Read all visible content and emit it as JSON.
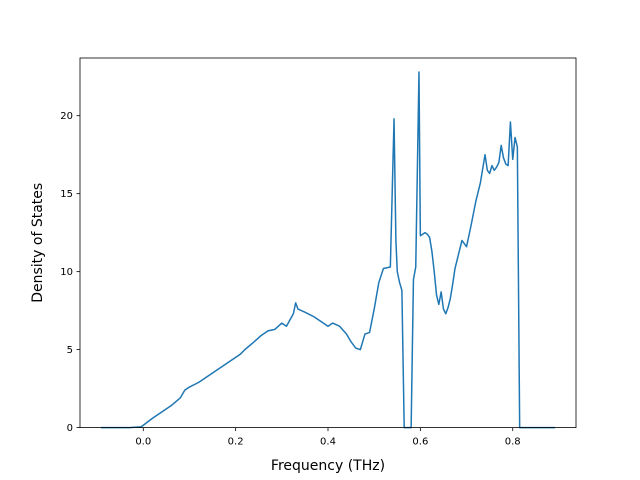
{
  "chart_data": {
    "type": "line",
    "title": "",
    "xlabel": "Frequency (THz)",
    "ylabel": "Density of States",
    "xlim": [
      -0.137,
      0.937
    ],
    "ylim": [
      0,
      23.7
    ],
    "grid": false,
    "legend": null,
    "x_ticks": [
      0.0,
      0.2,
      0.4,
      0.6,
      0.8
    ],
    "x_tick_labels": [
      "0.0",
      "0.2",
      "0.4",
      "0.6",
      "0.8"
    ],
    "y_ticks": [
      0,
      5,
      10,
      15,
      20
    ],
    "y_tick_labels": [
      "0",
      "5",
      "10",
      "15",
      "20"
    ],
    "colors": {
      "line": "#1f77b4",
      "axes": "#000000",
      "background": "#ffffff"
    },
    "series": [
      {
        "x": [
          -0.09,
          -0.03,
          -0.005,
          0.0,
          0.02,
          0.04,
          0.06,
          0.08,
          0.09,
          0.1,
          0.12,
          0.14,
          0.16,
          0.18,
          0.19,
          0.21,
          0.22,
          0.24,
          0.255,
          0.27,
          0.285,
          0.3,
          0.31,
          0.325,
          0.33,
          0.335,
          0.35,
          0.37,
          0.39,
          0.4,
          0.41,
          0.425,
          0.44,
          0.45,
          0.46,
          0.47,
          0.48,
          0.49,
          0.5,
          0.51,
          0.52,
          0.535,
          0.543,
          0.547,
          0.55,
          0.555,
          0.56,
          0.565,
          0.57,
          0.575,
          0.58,
          0.585,
          0.59,
          0.597,
          0.6,
          0.605,
          0.61,
          0.615,
          0.62,
          0.625,
          0.63,
          0.635,
          0.64,
          0.645,
          0.65,
          0.655,
          0.66,
          0.665,
          0.67,
          0.675,
          0.68,
          0.69,
          0.7,
          0.705,
          0.71,
          0.72,
          0.73,
          0.74,
          0.745,
          0.75,
          0.755,
          0.76,
          0.765,
          0.77,
          0.775,
          0.78,
          0.785,
          0.79,
          0.795,
          0.8,
          0.805,
          0.81,
          0.815,
          0.82,
          0.89
        ],
        "y": [
          0,
          0,
          0.05,
          0.15,
          0.6,
          1.0,
          1.4,
          1.9,
          2.4,
          2.6,
          2.9,
          3.3,
          3.7,
          4.1,
          4.3,
          4.7,
          5.0,
          5.5,
          5.9,
          6.2,
          6.3,
          6.7,
          6.5,
          7.3,
          8.0,
          7.6,
          7.4,
          7.1,
          6.7,
          6.5,
          6.7,
          6.5,
          6.0,
          5.5,
          5.1,
          5.0,
          6.0,
          6.1,
          7.6,
          9.3,
          10.2,
          10.3,
          19.8,
          12.0,
          10.0,
          9.3,
          8.8,
          0,
          0,
          0,
          0,
          9.5,
          10.3,
          22.8,
          12.3,
          12.4,
          12.5,
          12.4,
          12.2,
          11.3,
          10.0,
          8.5,
          7.9,
          8.7,
          7.6,
          7.3,
          7.7,
          8.3,
          9.2,
          10.2,
          10.8,
          12.0,
          11.6,
          12.3,
          13.0,
          14.5,
          15.7,
          17.5,
          16.5,
          16.3,
          16.8,
          16.5,
          16.7,
          17.0,
          18.1,
          17.3,
          16.9,
          16.8,
          19.6,
          17.2,
          18.6,
          18.0,
          0,
          0,
          0
        ]
      }
    ]
  }
}
